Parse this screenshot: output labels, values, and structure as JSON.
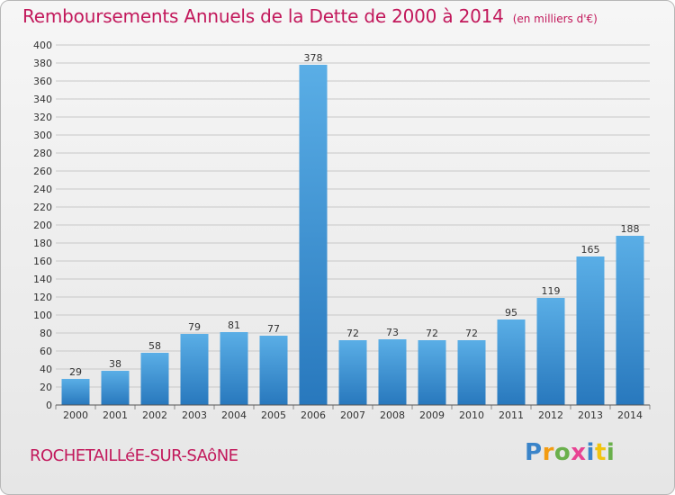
{
  "header": {
    "title": "Remboursements Annuels de la Dette de 2000 à 2014",
    "subtitle": "(en milliers d'€)"
  },
  "footer": {
    "city": "ROCHETAILLéE-SUR-SAôNE",
    "logo": {
      "p": "P",
      "r": "r",
      "o": "o",
      "x": "x",
      "i": "i",
      "t": "t",
      "i2": "i"
    }
  },
  "colors": {
    "title": "#c2185b",
    "bar_top": "#5aaee6",
    "bar_bottom": "#2878bd",
    "grid": "#c8c8c8"
  },
  "chart_data": {
    "type": "bar",
    "title": "Remboursements Annuels de la Dette de 2000 à 2014",
    "subtitle": "(en milliers d'€)",
    "xlabel": "",
    "ylabel": "",
    "categories": [
      "2000",
      "2001",
      "2002",
      "2003",
      "2004",
      "2005",
      "2006",
      "2007",
      "2008",
      "2009",
      "2010",
      "2011",
      "2012",
      "2013",
      "2014"
    ],
    "values": [
      29,
      38,
      58,
      79,
      81,
      77,
      378,
      72,
      73,
      72,
      72,
      95,
      119,
      165,
      188
    ],
    "ylim": [
      0,
      400
    ],
    "ytick_step": 20,
    "grid": true,
    "legend": "none"
  }
}
